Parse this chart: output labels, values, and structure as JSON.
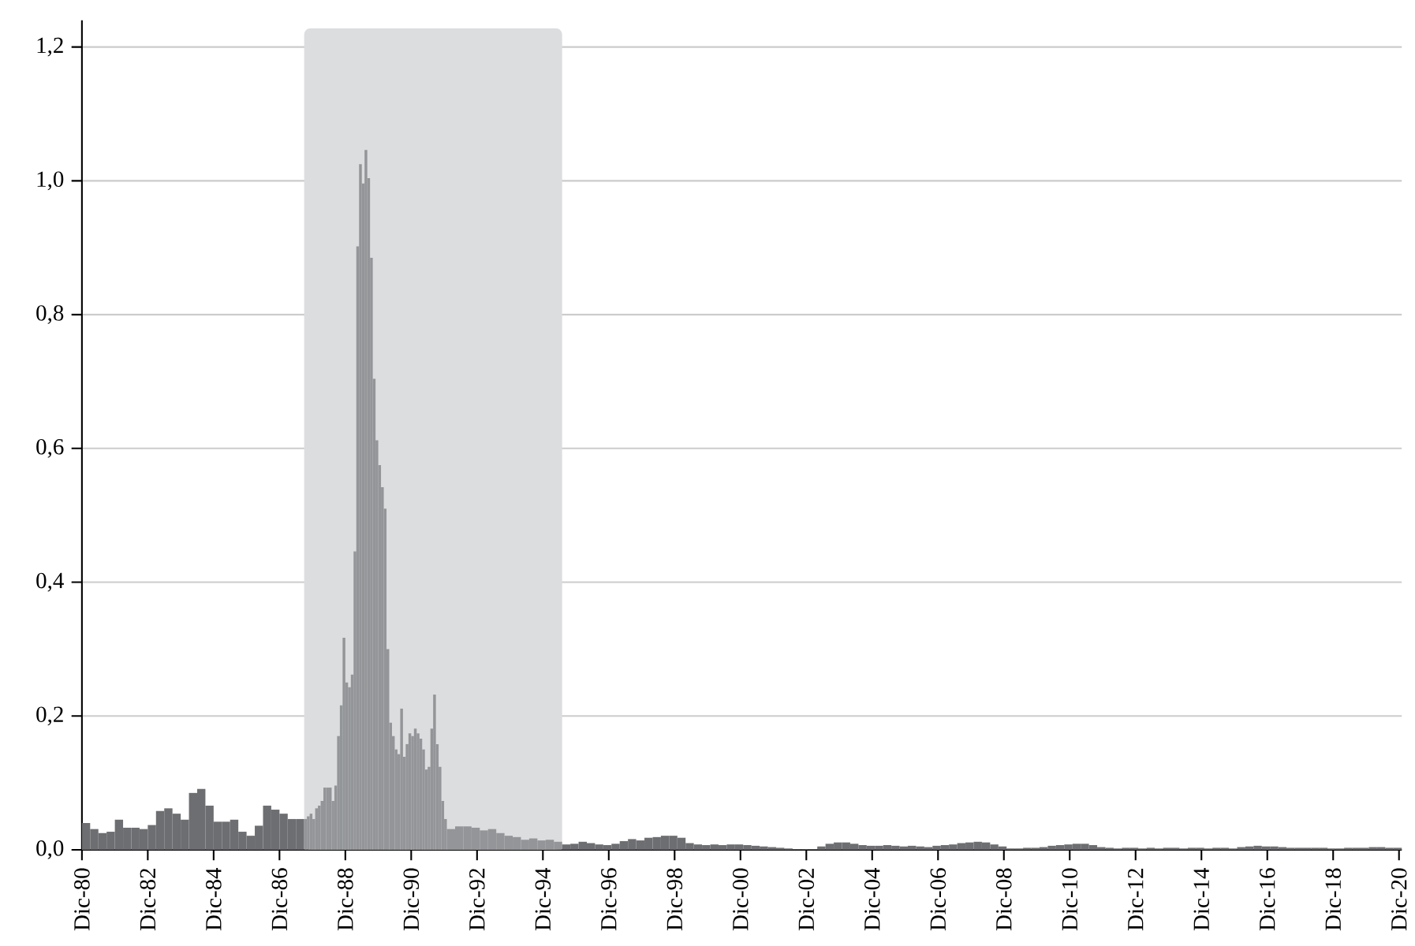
{
  "chart_data": {
    "type": "bar",
    "grid": "y",
    "xlim": [
      "1980-12",
      "2021-01"
    ],
    "ylim": [
      0,
      1.24
    ],
    "xticks": [
      {
        "value": "1980-12",
        "label": "Dic-80"
      },
      {
        "value": "1982-12",
        "label": "Dic-82"
      },
      {
        "value": "1984-12",
        "label": "Dic-84"
      },
      {
        "value": "1986-12",
        "label": "Dic-86"
      },
      {
        "value": "1988-12",
        "label": "Dic-88"
      },
      {
        "value": "1990-12",
        "label": "Dic-90"
      },
      {
        "value": "1992-12",
        "label": "Dic-92"
      },
      {
        "value": "1994-12",
        "label": "Dic-94"
      },
      {
        "value": "1996-12",
        "label": "Dic-96"
      },
      {
        "value": "1998-12",
        "label": "Dic-98"
      },
      {
        "value": "2000-12",
        "label": "Dic-00"
      },
      {
        "value": "2002-12",
        "label": "Dic-02"
      },
      {
        "value": "2004-12",
        "label": "Dic-04"
      },
      {
        "value": "2006-12",
        "label": "Dic-06"
      },
      {
        "value": "2008-12",
        "label": "Dic-08"
      },
      {
        "value": "2010-12",
        "label": "Dic-10"
      },
      {
        "value": "2012-12",
        "label": "Dic-12"
      },
      {
        "value": "2014-12",
        "label": "Dic-14"
      },
      {
        "value": "2016-12",
        "label": "Dic-16"
      },
      {
        "value": "2018-12",
        "label": "Dic-18"
      },
      {
        "value": "2020-12",
        "label": "Dic-20"
      }
    ],
    "yticks": [
      {
        "value": 0,
        "label": "0,0"
      },
      {
        "value": 0.2,
        "label": "0,2"
      },
      {
        "value": 0.4,
        "label": "0,4"
      },
      {
        "value": 0.6,
        "label": "0,6"
      },
      {
        "value": 0.8,
        "label": "0,8"
      },
      {
        "value": 1.0,
        "label": "1,0"
      },
      {
        "value": 1.2,
        "label": "1,2"
      }
    ],
    "bands": [
      {
        "axis": "x",
        "from": "1987-09",
        "to": "1995-07",
        "color": "#dcdddf"
      }
    ],
    "series": [
      {
        "color": "#6d6e71",
        "x": [
          "1980-12",
          "1981-03",
          "1981-06",
          "1981-09",
          "1981-12",
          "1982-03",
          "1982-06",
          "1982-09",
          "1982-12",
          "1983-03",
          "1983-06",
          "1983-09",
          "1983-12",
          "1984-03",
          "1984-06",
          "1984-09",
          "1984-12",
          "1985-03",
          "1985-06",
          "1985-09",
          "1985-12",
          "1986-03",
          "1986-06",
          "1986-09",
          "1986-12",
          "1987-03",
          "1987-06"
        ],
        "values": [
          0.04,
          0.031,
          0.025,
          0.027,
          0.045,
          0.033,
          0.033,
          0.031,
          0.037,
          0.058,
          0.062,
          0.054,
          0.045,
          0.085,
          0.091,
          0.066,
          0.042,
          0.042,
          0.045,
          0.027,
          0.021,
          0.036,
          0.066,
          0.06,
          0.054,
          0.046,
          0.046
        ]
      },
      {
        "color": "#939598",
        "x": [
          "1987-09",
          "1987-10",
          "1987-11",
          "1987-12",
          "1988-01",
          "1988-02",
          "1988-03",
          "1988-04",
          "1988-05",
          "1988-06",
          "1988-07",
          "1988-08",
          "1988-09",
          "1988-10",
          "1988-11",
          "1988-12",
          "1989-01",
          "1989-02",
          "1989-03",
          "1989-04",
          "1989-05",
          "1989-06",
          "1989-07",
          "1989-08",
          "1989-09",
          "1989-10",
          "1989-11",
          "1989-12",
          "1990-01",
          "1990-02",
          "1990-03",
          "1990-04",
          "1990-05",
          "1990-06",
          "1990-07",
          "1990-08",
          "1990-09",
          "1990-10",
          "1990-11",
          "1990-12",
          "1991-01",
          "1991-02",
          "1991-03",
          "1991-04",
          "1991-05",
          "1991-06",
          "1991-07",
          "1991-08",
          "1991-09",
          "1991-10",
          "1991-11",
          "1991-12"
        ],
        "values": [
          0.046,
          0.05,
          0.054,
          0.046,
          0.062,
          0.066,
          0.073,
          0.093,
          0.093,
          0.093,
          0.073,
          0.096,
          0.17,
          0.216,
          0.317,
          0.25,
          0.243,
          0.262,
          0.446,
          0.902,
          1.025,
          0.996,
          1.046,
          1.004,
          0.885,
          0.704,
          0.612,
          0.575,
          0.542,
          0.51,
          0.3,
          0.19,
          0.17,
          0.15,
          0.143,
          0.211,
          0.139,
          0.158,
          0.174,
          0.17,
          0.181,
          0.174,
          0.166,
          0.15,
          0.12,
          0.124,
          0.181,
          0.232,
          0.158,
          0.124,
          0.073,
          0.046
        ]
      },
      {
        "color": "#939598",
        "x": [
          "1992-01",
          "1992-04",
          "1992-07",
          "1992-10",
          "1993-01",
          "1993-04",
          "1993-07",
          "1993-10",
          "1994-01",
          "1994-04",
          "1994-07",
          "1994-10",
          "1995-01",
          "1995-04"
        ],
        "values": [
          0.031,
          0.035,
          0.035,
          0.033,
          0.029,
          0.031,
          0.025,
          0.021,
          0.019,
          0.015,
          0.017,
          0.014,
          0.015,
          0.012
        ]
      },
      {
        "color": "#6d6e71",
        "x": [
          "1995-07",
          "1995-10",
          "1996-01",
          "1996-04",
          "1996-07",
          "1996-10",
          "1997-01",
          "1997-04",
          "1997-07",
          "1997-10",
          "1998-01",
          "1998-04",
          "1998-07",
          "1998-10",
          "1999-01",
          "1999-04",
          "1999-07",
          "1999-10",
          "2000-01",
          "2000-04",
          "2000-07",
          "2000-10",
          "2001-01",
          "2001-04",
          "2001-07",
          "2001-10",
          "2002-01",
          "2002-04",
          "2002-07",
          "2002-10",
          "2003-01",
          "2003-04",
          "2003-07",
          "2003-10",
          "2004-01",
          "2004-04",
          "2004-07",
          "2004-10",
          "2005-01",
          "2005-04",
          "2005-07",
          "2005-10",
          "2006-01",
          "2006-04",
          "2006-07",
          "2006-10",
          "2007-01",
          "2007-04",
          "2007-07",
          "2007-10",
          "2008-01",
          "2008-04",
          "2008-07",
          "2008-10",
          "2009-01",
          "2009-04",
          "2009-07",
          "2009-10",
          "2010-01",
          "2010-04",
          "2010-07",
          "2010-10",
          "2011-01",
          "2011-04",
          "2011-07",
          "2011-10",
          "2012-01",
          "2012-04",
          "2012-07",
          "2012-10",
          "2013-01",
          "2013-04",
          "2013-07",
          "2013-10",
          "2014-01",
          "2014-04",
          "2014-07",
          "2014-10",
          "2015-01",
          "2015-04",
          "2015-07",
          "2015-10",
          "2016-01",
          "2016-04",
          "2016-07",
          "2016-10",
          "2017-01",
          "2017-04",
          "2017-07",
          "2017-10",
          "2018-01",
          "2018-04",
          "2018-07",
          "2018-10",
          "2019-01",
          "2019-04",
          "2019-07",
          "2019-10",
          "2020-01",
          "2020-04",
          "2020-07",
          "2020-10"
        ],
        "values": [
          0.008,
          0.009,
          0.012,
          0.01,
          0.008,
          0.007,
          0.009,
          0.013,
          0.016,
          0.014,
          0.018,
          0.019,
          0.021,
          0.021,
          0.018,
          0.01,
          0.008,
          0.007,
          0.008,
          0.007,
          0.008,
          0.008,
          0.007,
          0.006,
          0.005,
          0.004,
          0.003,
          0.002,
          0.001,
          0.001,
          0.001,
          0.005,
          0.009,
          0.011,
          0.011,
          0.009,
          0.007,
          0.006,
          0.006,
          0.007,
          0.006,
          0.005,
          0.006,
          0.005,
          0.004,
          0.006,
          0.007,
          0.008,
          0.01,
          0.011,
          0.012,
          0.011,
          0.008,
          0.005,
          0.002,
          0.002,
          0.003,
          0.003,
          0.004,
          0.006,
          0.007,
          0.008,
          0.009,
          0.009,
          0.007,
          0.004,
          0.003,
          0.002,
          0.003,
          0.003,
          0.002,
          0.003,
          0.002,
          0.003,
          0.003,
          0.002,
          0.003,
          0.003,
          0.002,
          0.003,
          0.003,
          0.002,
          0.004,
          0.005,
          0.006,
          0.005,
          0.005,
          0.004,
          0.003,
          0.003,
          0.003,
          0.003,
          0.003,
          0.002,
          0.002,
          0.003,
          0.003,
          0.003,
          0.004,
          0.004,
          0.003,
          0.003
        ]
      }
    ]
  }
}
